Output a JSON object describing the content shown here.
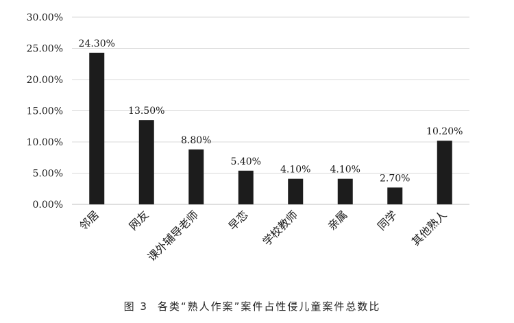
{
  "chart_data": {
    "type": "bar",
    "title": "",
    "xlabel": "",
    "ylabel": "",
    "categories": [
      "邻居",
      "网友",
      "课外辅导老师",
      "早恋",
      "学校教师",
      "亲属",
      "同学",
      "其他熟人"
    ],
    "values": [
      24.3,
      13.5,
      8.8,
      5.4,
      4.1,
      4.1,
      2.7,
      10.2
    ],
    "data_labels": [
      "24.30%",
      "13.50%",
      "8.80%",
      "5.40%",
      "4.10%",
      "4.10%",
      "2.70%",
      "10.20%"
    ],
    "ylim": [
      0,
      30
    ],
    "yticks": [
      0,
      5,
      10,
      15,
      20,
      25,
      30
    ],
    "ytick_labels": [
      "0.00%",
      "5.00%",
      "10.00%",
      "15.00%",
      "20.00%",
      "25.00%",
      "30.00%"
    ],
    "grid": true,
    "bar_color": "#1c1c1c",
    "grid_color": "#d9d9d9"
  },
  "caption": {
    "figure_number": "图 3",
    "text": "各类“熟人作案”案件占性侵儿童案件总数比"
  }
}
